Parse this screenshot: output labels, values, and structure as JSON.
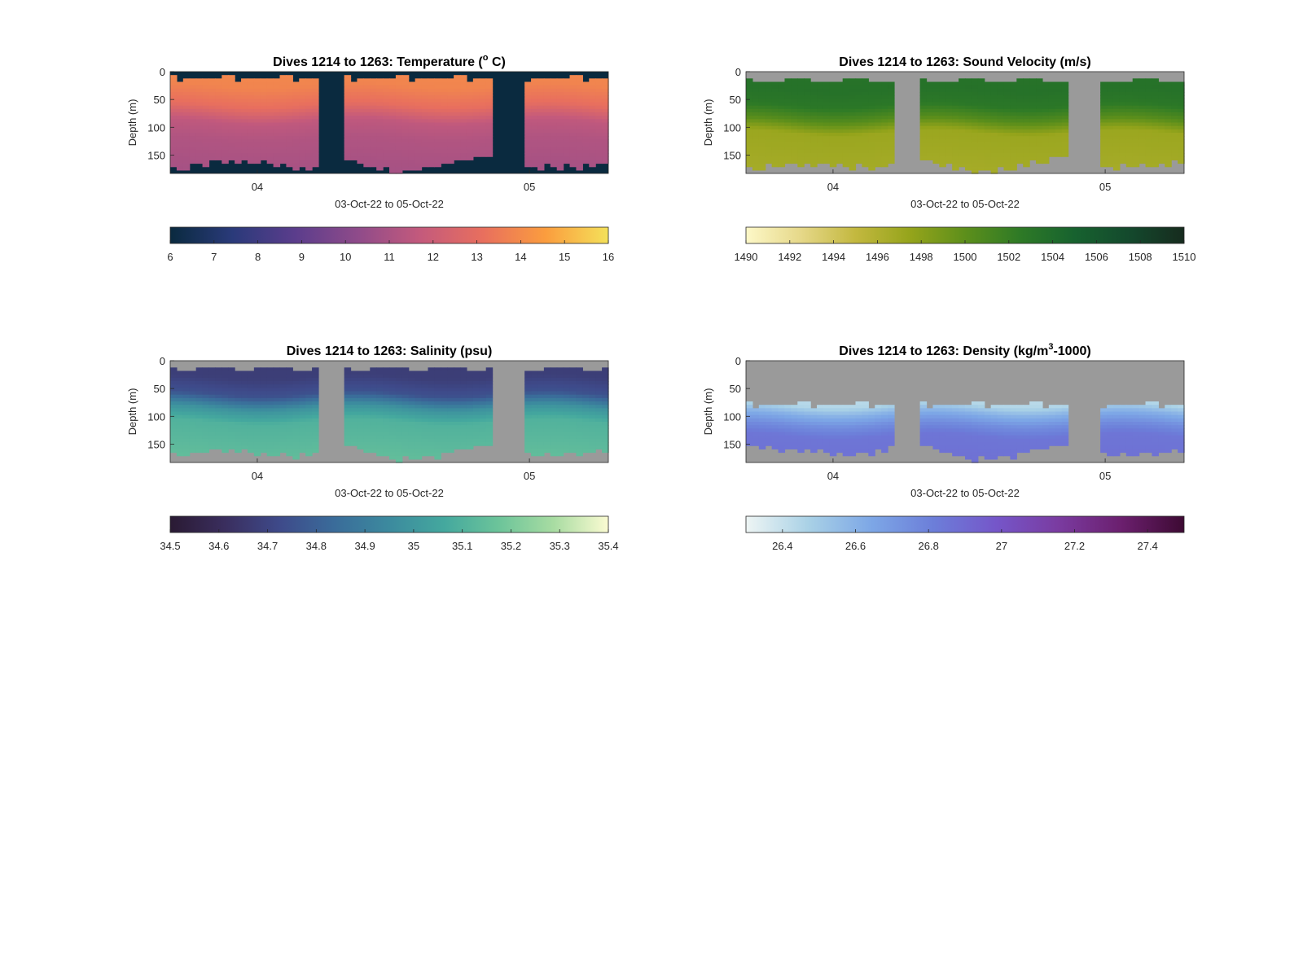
{
  "chart_data": [
    {
      "id": "temperature",
      "type": "heatmap",
      "title": "Dives 1214 to 1263: Temperature (",
      "title_sup": "o",
      "title_end": " C)",
      "ylabel": "Depth (m)",
      "xlabel": "03-Oct-22 to 05-Oct-22",
      "ylim": [
        0,
        183
      ],
      "xlim": [
        3.68,
        5.29
      ],
      "y_ticks": [
        "0",
        "50",
        "100",
        "150"
      ],
      "x_ticks": [
        {
          "value": 4.0,
          "label": "04"
        },
        {
          "value": 5.0,
          "label": "05"
        }
      ],
      "gaps": [
        [
          4.225,
          4.32
        ],
        [
          4.865,
          4.99
        ]
      ],
      "background_color": "#0a2a3f",
      "colorbar": {
        "range": [
          6,
          16
        ],
        "colors": [
          "#0a2a3f",
          "#2a3a7a",
          "#5b3d8c",
          "#8f4b8a",
          "#c45a7c",
          "#e86f5e",
          "#fb9d3e",
          "#f4e15a"
        ],
        "ticks": [
          "6",
          "7",
          "8",
          "9",
          "10",
          "11",
          "12",
          "13",
          "14",
          "15",
          "16"
        ]
      },
      "profile": {
        "depths": [
          0,
          25,
          60,
          90,
          120,
          180
        ],
        "values": [
          13.9,
          13.8,
          13.1,
          11.6,
          11.2,
          10.9
        ]
      },
      "surface_start_m": 8,
      "bottom_depth_m": {
        "x": [
          3.68,
          3.85,
          4.05,
          4.22,
          4.33,
          4.5,
          4.6,
          4.75,
          4.86,
          5.0,
          5.1,
          5.29
        ],
        "d": [
          180,
          160,
          165,
          178,
          155,
          182,
          175,
          160,
          150,
          175,
          170,
          168
        ]
      }
    },
    {
      "id": "sound-velocity",
      "type": "heatmap",
      "title": "Dives 1214 to 1263: Sound Velocity (m/s)",
      "title_sup": "",
      "title_end": "",
      "ylabel": "Depth (m)",
      "xlabel": "03-Oct-22 to 05-Oct-22",
      "ylim": [
        0,
        183
      ],
      "xlim": [
        3.68,
        5.29
      ],
      "y_ticks": [
        "0",
        "50",
        "100",
        "150"
      ],
      "x_ticks": [
        {
          "value": 4.0,
          "label": "04"
        },
        {
          "value": 5.0,
          "label": "05"
        }
      ],
      "gaps": [
        [
          4.225,
          4.32
        ],
        [
          4.865,
          4.99
        ]
      ],
      "background_color": "#9a9a9a",
      "colorbar": {
        "range": [
          1490,
          1510
        ],
        "colors": [
          "#fdf8c8",
          "#e6d889",
          "#c3b83f",
          "#95a41b",
          "#5d8f1b",
          "#2e7a26",
          "#17622f",
          "#14492d",
          "#162b1e"
        ],
        "ticks": [
          "1490",
          "1492",
          "1494",
          "1496",
          "1498",
          "1500",
          "1502",
          "1504",
          "1506",
          "1508",
          "1510"
        ]
      },
      "profile": {
        "depths": [
          0,
          30,
          60,
          85,
          110,
          180
        ],
        "values": [
          1503.2,
          1503.4,
          1502.8,
          1500.5,
          1497.2,
          1496.6
        ]
      },
      "surface_start_m": 12,
      "bottom_depth_m": {
        "x": [
          3.68,
          3.85,
          4.05,
          4.22,
          4.33,
          4.5,
          4.6,
          4.75,
          4.86,
          5.0,
          5.1,
          5.29
        ],
        "d": [
          178,
          165,
          170,
          172,
          155,
          180,
          176,
          165,
          150,
          175,
          170,
          165
        ]
      }
    },
    {
      "id": "salinity",
      "type": "heatmap",
      "title": "Dives 1214 to 1263: Salinity (psu)",
      "title_sup": "",
      "title_end": "",
      "ylabel": "Depth (m)",
      "xlabel": "03-Oct-22 to 05-Oct-22",
      "ylim": [
        0,
        183
      ],
      "xlim": [
        3.68,
        5.29
      ],
      "y_ticks": [
        "0",
        "50",
        "100",
        "150"
      ],
      "x_ticks": [
        {
          "value": 4.0,
          "label": "04"
        },
        {
          "value": 5.0,
          "label": "05"
        }
      ],
      "gaps": [
        [
          4.225,
          4.32
        ],
        [
          4.865,
          4.99
        ]
      ],
      "background_color": "#9a9a9a",
      "colorbar": {
        "range": [
          34.5,
          35.4
        ],
        "colors": [
          "#2a1a33",
          "#3a2e5e",
          "#3e4a8a",
          "#3a6c9a",
          "#3c8a9e",
          "#44a89e",
          "#6cc49a",
          "#a8dca2",
          "#fbfbd2"
        ],
        "ticks": [
          "34.5",
          "34.6",
          "34.7",
          "34.8",
          "34.9",
          "35",
          "35.1",
          "35.2",
          "35.3",
          "35.4"
        ]
      },
      "profile": {
        "depths": [
          0,
          30,
          60,
          85,
          110,
          180
        ],
        "values": [
          34.67,
          34.68,
          34.75,
          34.98,
          35.1,
          35.15
        ]
      },
      "surface_start_m": 10,
      "bottom_depth_m": {
        "x": [
          3.68,
          3.85,
          4.05,
          4.22,
          4.33,
          4.5,
          4.6,
          4.75,
          4.86,
          5.0,
          5.1,
          5.29
        ],
        "d": [
          172,
          160,
          168,
          170,
          150,
          178,
          174,
          162,
          150,
          172,
          168,
          164
        ]
      }
    },
    {
      "id": "density",
      "type": "heatmap",
      "title": "Dives 1214 to 1263: Density (kg/m",
      "title_sup": "3",
      "title_end": "-1000)",
      "ylabel": "Depth (m)",
      "xlabel": "03-Oct-22 to 05-Oct-22",
      "ylim": [
        0,
        183
      ],
      "xlim": [
        3.68,
        5.29
      ],
      "y_ticks": [
        "0",
        "50",
        "100",
        "150"
      ],
      "x_ticks": [
        {
          "value": 4.0,
          "label": "04"
        },
        {
          "value": 5.0,
          "label": "05"
        }
      ],
      "gaps": [
        [
          4.225,
          4.32
        ],
        [
          4.865,
          4.99
        ]
      ],
      "background_color": "#9a9a9a",
      "colorbar": {
        "range": [
          26.3,
          27.5
        ],
        "colors": [
          "#eef5f4",
          "#a9d1e6",
          "#7da7e6",
          "#6c7ed9",
          "#7556c9",
          "#7a3ba0",
          "#6b1f6e",
          "#3d0a33"
        ],
        "ticks": [
          "26.4",
          "26.6",
          "26.8",
          "27",
          "27.2",
          "27.4"
        ]
      },
      "profile": {
        "depths": [
          0,
          80,
          95,
          115,
          135,
          180
        ],
        "values": [
          26.3,
          26.45,
          26.6,
          26.75,
          26.85,
          26.87
        ]
      },
      "surface_start_m": 75,
      "bottom_depth_m": {
        "x": [
          3.68,
          3.85,
          4.05,
          4.22,
          4.33,
          4.5,
          4.6,
          4.75,
          4.86,
          5.0,
          5.1,
          5.29
        ],
        "d": [
          155,
          160,
          168,
          160,
          150,
          178,
          174,
          162,
          150,
          172,
          168,
          164
        ]
      }
    }
  ]
}
